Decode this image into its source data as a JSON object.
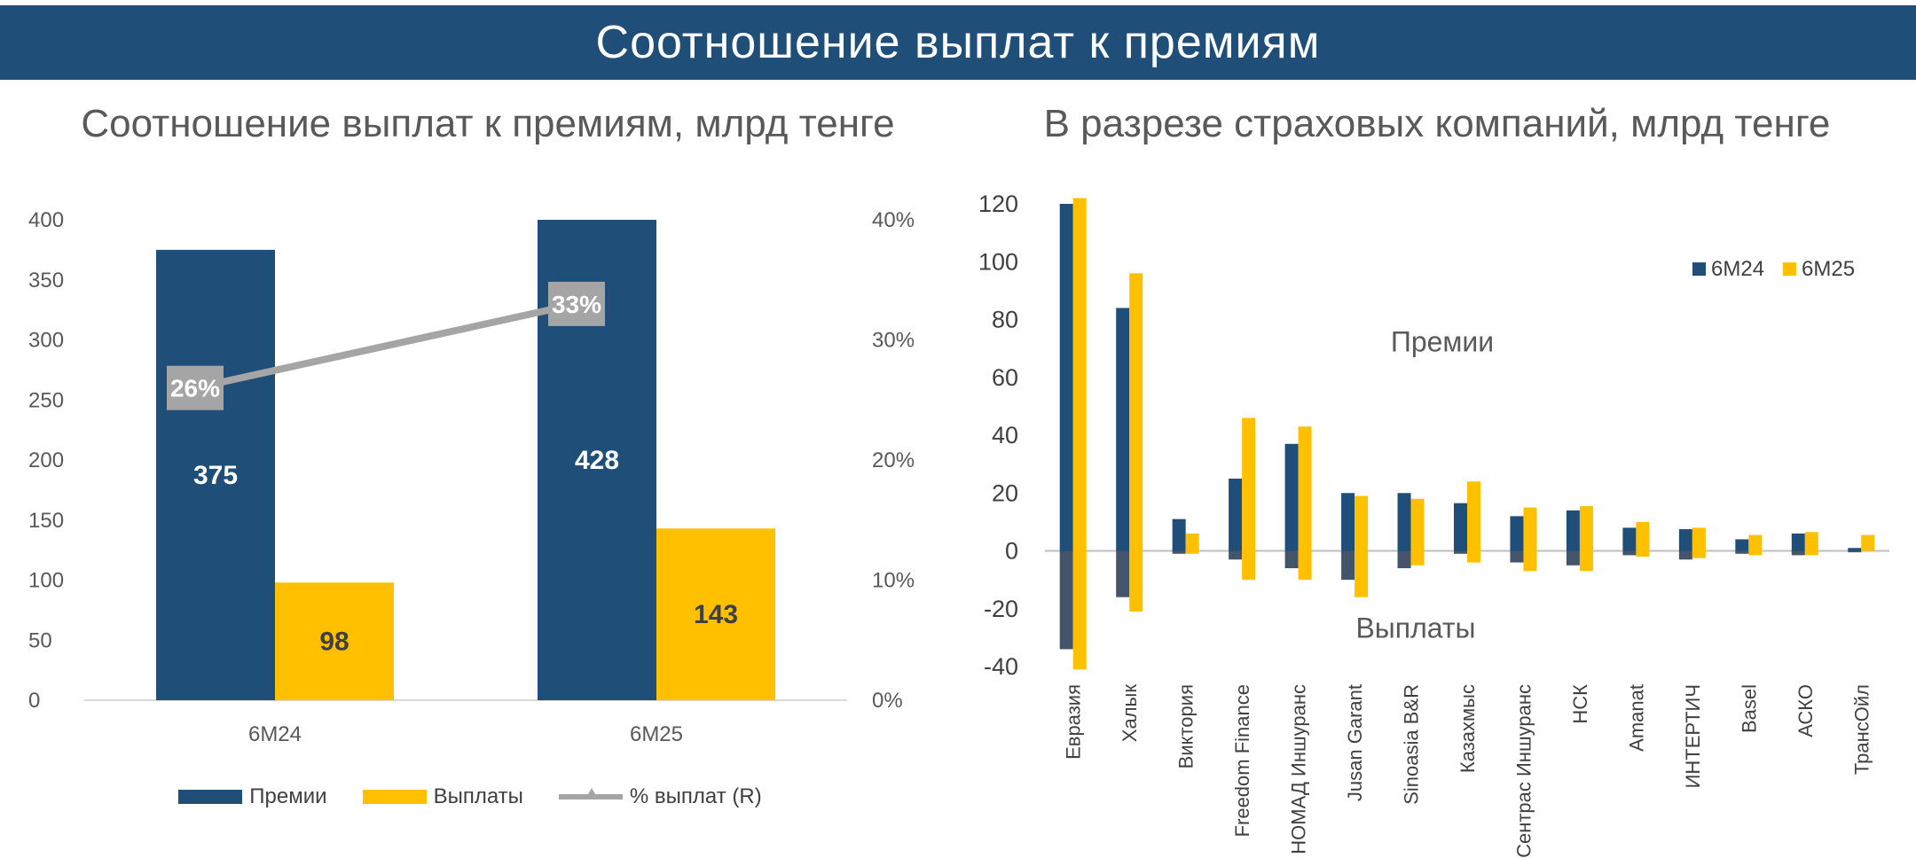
{
  "page_title": "Соотношение выплат к премиям",
  "colors": {
    "banner": "#1f4e79",
    "premiums": "#1f4e79",
    "payouts": "#ffc000",
    "ratio": "#a5a5a5",
    "text": "#595959"
  },
  "chart_data": [
    {
      "type": "bar",
      "title": "Соотношение выплат к премиям, млрд тенге",
      "categories": [
        "6М24",
        "6М25"
      ],
      "series": [
        {
          "name": "Премии",
          "values": [
            375,
            428
          ],
          "labels": [
            "375",
            "428"
          ]
        },
        {
          "name": "Выплаты",
          "values": [
            98,
            143
          ],
          "labels": [
            "98",
            "143"
          ]
        }
      ],
      "line_series": {
        "name": "% выплат (R)",
        "values": [
          26,
          33
        ],
        "labels": [
          "26%",
          "33%"
        ],
        "axis": "right"
      },
      "ylim": [
        0,
        400
      ],
      "yticks": [
        "0",
        "50",
        "100",
        "150",
        "200",
        "250",
        "300",
        "350",
        "400"
      ],
      "y2lim": [
        0,
        40
      ],
      "y2ticks": [
        "0%",
        "10%",
        "20%",
        "30%",
        "40%"
      ],
      "legend": [
        "Премии",
        "Выплаты",
        "% выплат (R)"
      ],
      "legend_position": "bottom"
    },
    {
      "type": "bar",
      "title": "В разрезе страховых компаний, млрд тенге",
      "categories": [
        "Евразия",
        "Халык",
        "Виктория",
        "Freedom Finance",
        "НОМАД Иншуранс",
        "Jusan Garant",
        "Sinoasia B&R",
        "Казахмыс",
        "Сентрас Иншуранс",
        "НСК",
        "Amanat",
        "ИНТЕРТИЧ",
        "Basel",
        "АСКО",
        "ТрансОйл"
      ],
      "series": [
        {
          "name": "6М24",
          "premiums": [
            120,
            84,
            11,
            25,
            37,
            20,
            20,
            16.5,
            12,
            14,
            8,
            7.5,
            4,
            6,
            1
          ],
          "payouts": [
            -34,
            -16,
            -1,
            -3,
            -6,
            -10,
            -6,
            -1,
            -4,
            -5,
            -1.5,
            -3,
            -1,
            -1.5,
            -0.5
          ]
        },
        {
          "name": "6М25",
          "premiums": [
            122,
            96,
            6,
            46,
            43,
            19,
            18,
            24,
            15,
            15.5,
            10,
            8,
            5.5,
            6.5,
            5.5
          ],
          "payouts": [
            -41,
            -21,
            -1,
            -10,
            -10,
            -16,
            -5,
            -4,
            -7,
            -7,
            -2,
            -2.5,
            -1.5,
            -1.5,
            0
          ]
        }
      ],
      "annotations": [
        "Премии",
        "Выплаты"
      ],
      "ylim": [
        -40,
        120
      ],
      "yticks": [
        "-40",
        "-20",
        "0",
        "20",
        "40",
        "60",
        "80",
        "100",
        "120"
      ],
      "legend": [
        "6М24",
        "6М25"
      ],
      "legend_position": "top-right"
    }
  ]
}
